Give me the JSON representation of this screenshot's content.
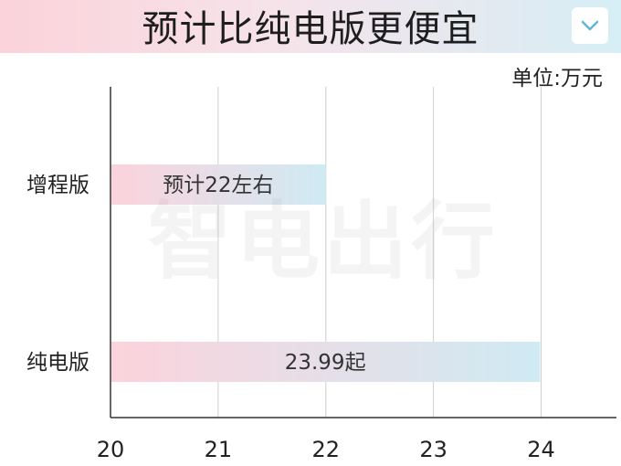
{
  "header": {
    "title": "预计比纯电版更便宜",
    "collapse_icon": "chevron-down-icon"
  },
  "unit_label": "单位:万元",
  "watermark": "智电出行",
  "colors": {
    "bar_start": "#fcd3dc",
    "bar_end": "#cfeaf3",
    "grid": "#cfcfcf",
    "axis": "#333333",
    "text": "#222222",
    "chevron": "#5fb8d6"
  },
  "chart_data": {
    "type": "bar",
    "orientation": "horizontal",
    "title": "预计比纯电版更便宜",
    "unit": "单位:万元",
    "categories": [
      "增程版",
      "纯电版"
    ],
    "values": [
      22,
      23.99
    ],
    "data_labels": [
      "预计22左右",
      "23.99起"
    ],
    "x_ticks": [
      "20",
      "21",
      "22",
      "23",
      "24"
    ],
    "xlim": [
      20,
      24.7
    ],
    "grid": true
  }
}
